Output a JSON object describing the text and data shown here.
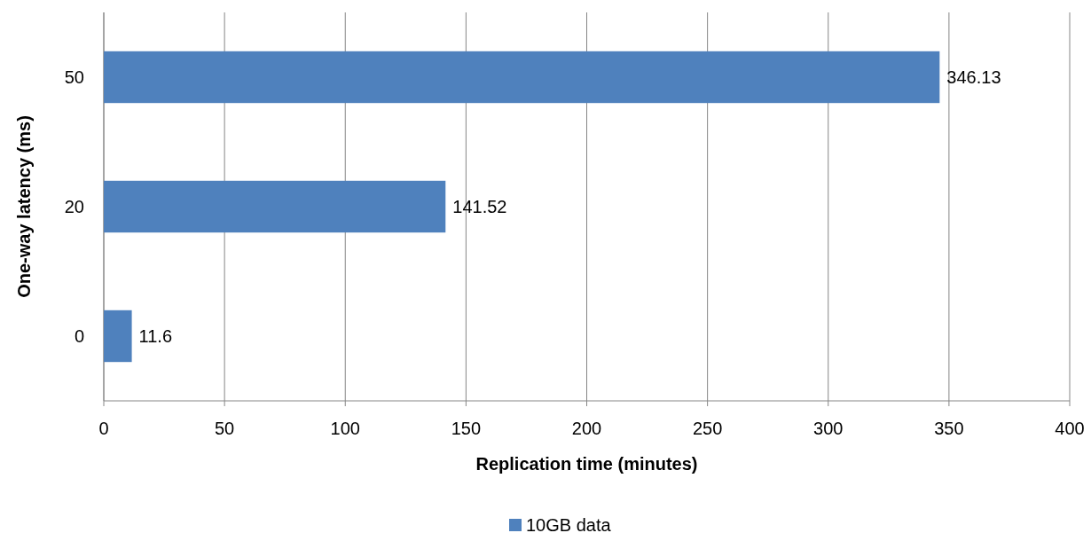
{
  "chart_data": {
    "type": "bar",
    "orientation": "horizontal",
    "xlabel": "Replication time (minutes)",
    "ylabel": "One-way latency (ms)",
    "categories": [
      "50",
      "20",
      "0"
    ],
    "series": [
      {
        "name": "10GB data",
        "color": "#4f81bd",
        "values": [
          346.13,
          141.52,
          11.6
        ]
      }
    ],
    "xlim": [
      0,
      400
    ],
    "xticks": [
      0,
      50,
      100,
      150,
      200,
      250,
      300,
      350,
      400
    ],
    "grid": "x",
    "legend": "bottom",
    "data_labels": true
  }
}
